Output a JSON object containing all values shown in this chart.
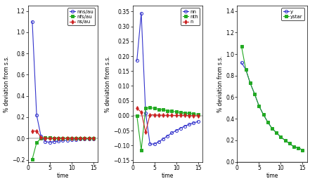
{
  "panel1": {
    "ylabel": "% deviation from s.s.",
    "xlabel": "time",
    "ylim": [
      -0.22,
      1.25
    ],
    "xlim": [
      0,
      16
    ],
    "xticks": [
      0,
      5,
      10,
      15
    ],
    "yticks": [
      -0.2,
      0.0,
      0.2,
      0.4,
      0.6,
      0.8,
      1.0,
      1.2
    ],
    "series": [
      {
        "label": "nns/au",
        "color": "#3333cc",
        "marker": "o",
        "mfc": "none",
        "data_x": [
          1,
          2,
          3,
          4,
          5,
          6,
          7,
          8,
          9,
          10,
          11,
          12,
          13,
          14,
          15
        ],
        "data_y": [
          1.1,
          0.22,
          0.02,
          -0.03,
          -0.035,
          -0.03,
          -0.025,
          -0.02,
          -0.015,
          -0.012,
          -0.009,
          -0.007,
          -0.005,
          -0.004,
          -0.003
        ]
      },
      {
        "label": "nfs/au",
        "color": "#22aa22",
        "marker": "s",
        "mfc": "#22aa22",
        "data_x": [
          1,
          2,
          3,
          4,
          5,
          6,
          7,
          8,
          9,
          10,
          11,
          12,
          13,
          14,
          15
        ],
        "data_y": [
          -0.195,
          -0.04,
          0.003,
          0.005,
          0.005,
          0.004,
          0.003,
          0.003,
          0.002,
          0.002,
          0.001,
          0.001,
          0.001,
          0.001,
          0.0
        ]
      },
      {
        "label": "ns/au",
        "color": "#cc2222",
        "marker": "d",
        "mfc": "#cc2222",
        "data_x": [
          1,
          2,
          3,
          4,
          5,
          6,
          7,
          8,
          9,
          10,
          11,
          12,
          13,
          14,
          15
        ],
        "data_y": [
          0.07,
          0.07,
          0.01,
          0.002,
          0.001,
          0.001,
          0.0,
          0.0,
          0.0,
          0.0,
          0.0,
          0.0,
          0.0,
          0.0,
          0.0
        ]
      }
    ]
  },
  "panel2": {
    "ylabel": "% deviation from s.s.",
    "xlabel": "time",
    "ylim": [
      -0.155,
      0.37
    ],
    "xlim": [
      0,
      16
    ],
    "xticks": [
      0,
      5,
      10,
      15
    ],
    "yticks": [
      -0.15,
      -0.1,
      -0.05,
      0.0,
      0.05,
      0.1,
      0.15,
      0.2,
      0.25,
      0.3,
      0.35
    ],
    "series": [
      {
        "label": "nn",
        "color": "#3333cc",
        "marker": "o",
        "mfc": "none",
        "data_x": [
          1,
          2,
          3,
          4,
          5,
          6,
          7,
          8,
          9,
          10,
          11,
          12,
          13,
          14,
          15
        ],
        "data_y": [
          0.185,
          0.345,
          0.01,
          -0.095,
          -0.095,
          -0.088,
          -0.078,
          -0.068,
          -0.058,
          -0.05,
          -0.042,
          -0.035,
          -0.029,
          -0.024,
          -0.02
        ]
      },
      {
        "label": "nth",
        "color": "#22aa22",
        "marker": "s",
        "mfc": "#22aa22",
        "data_x": [
          1,
          2,
          3,
          4,
          5,
          6,
          7,
          8,
          9,
          10,
          11,
          12,
          13,
          14,
          15
        ],
        "data_y": [
          0.0,
          -0.115,
          0.025,
          0.027,
          0.025,
          0.022,
          0.02,
          0.017,
          0.015,
          0.013,
          0.011,
          0.009,
          0.008,
          0.006,
          0.005
        ]
      },
      {
        "label": "n",
        "color": "#cc2222",
        "marker": "d",
        "mfc": "#cc2222",
        "data_x": [
          1,
          2,
          3,
          4,
          5,
          6,
          7,
          8,
          9,
          10,
          11,
          12,
          13,
          14,
          15
        ],
        "data_y": [
          0.025,
          0.012,
          -0.055,
          0.003,
          0.003,
          0.002,
          0.002,
          0.001,
          0.001,
          0.001,
          0.001,
          0.001,
          0.0,
          0.0,
          0.0
        ]
      }
    ]
  },
  "panel3": {
    "ylabel": "% deviation from s.s.",
    "xlabel": "time",
    "ylim": [
      0,
      1.45
    ],
    "xlim": [
      0,
      16
    ],
    "xticks": [
      0,
      5,
      10,
      15
    ],
    "yticks": [
      0.0,
      0.2,
      0.4,
      0.6,
      0.8,
      1.0,
      1.2,
      1.4
    ],
    "series": [
      {
        "label": "y",
        "color": "#3333cc",
        "marker": "o",
        "mfc": "none",
        "data_x": [
          1,
          2,
          3,
          4,
          5,
          6,
          7,
          8,
          9,
          10,
          11,
          12,
          13,
          14,
          15
        ],
        "data_y": [
          0.92,
          0.855,
          0.73,
          0.63,
          0.52,
          0.44,
          0.37,
          0.31,
          0.27,
          0.23,
          0.2,
          0.17,
          0.14,
          0.13,
          0.11
        ]
      },
      {
        "label": "ystar",
        "color": "#22aa22",
        "marker": "s",
        "mfc": "#22aa22",
        "data_x": [
          1,
          2,
          3,
          4,
          5,
          6,
          7,
          8,
          9,
          10,
          11,
          12,
          13,
          14,
          15
        ],
        "data_y": [
          1.07,
          0.855,
          0.73,
          0.63,
          0.52,
          0.44,
          0.37,
          0.31,
          0.27,
          0.23,
          0.2,
          0.17,
          0.14,
          0.13,
          0.11
        ]
      }
    ]
  },
  "bg_color": "#ffffff",
  "linewidth": 0.8,
  "markersize": 3.0,
  "legend_fontsize": 5.0,
  "tick_fontsize": 5.5,
  "label_fontsize": 5.5
}
